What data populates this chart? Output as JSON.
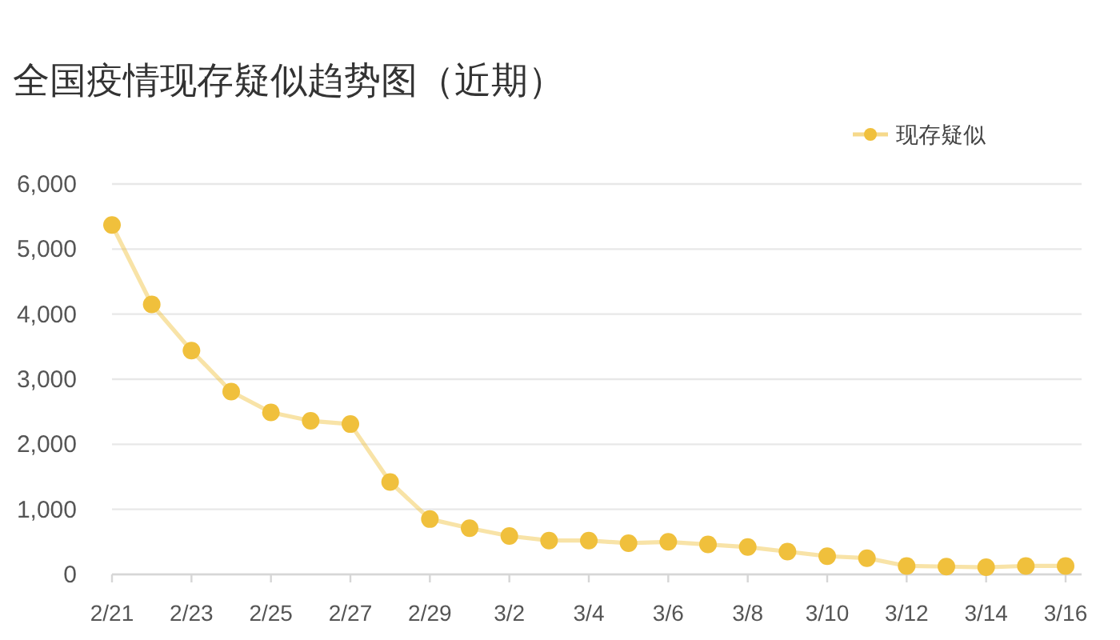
{
  "chart_data": {
    "type": "line",
    "title": "全国疫情现存疑似趋势图（近期）",
    "categories": [
      "2/21",
      null,
      "2/23",
      null,
      "2/25",
      null,
      "2/27",
      null,
      "2/29",
      null,
      "3/2",
      null,
      "3/4",
      null,
      "3/6",
      null,
      "3/8",
      null,
      "3/10",
      null,
      "3/12",
      null,
      "3/14",
      null,
      "3/16"
    ],
    "series": [
      {
        "name": "现存疑似",
        "color": "#f0c03c",
        "values": [
          5370,
          4150,
          3440,
          2810,
          2490,
          2360,
          2310,
          1420,
          850,
          710,
          590,
          520,
          520,
          480,
          500,
          460,
          420,
          350,
          280,
          250,
          130,
          120,
          110,
          130,
          130
        ]
      }
    ],
    "ylim": [
      0,
      6000
    ],
    "yticks": [
      0,
      {
        "value": 1000,
        "label": "1,000"
      },
      {
        "value": 2000,
        "label": "2,000"
      },
      {
        "value": 3000,
        "label": "3,000"
      },
      {
        "value": 4000,
        "label": "4,000"
      },
      {
        "value": 5000,
        "label": "5,000"
      },
      {
        "value": 6000,
        "label": "6,000"
      }
    ],
    "grid": "y",
    "legend": "top right",
    "marker": "circle",
    "line_style": "solid"
  }
}
